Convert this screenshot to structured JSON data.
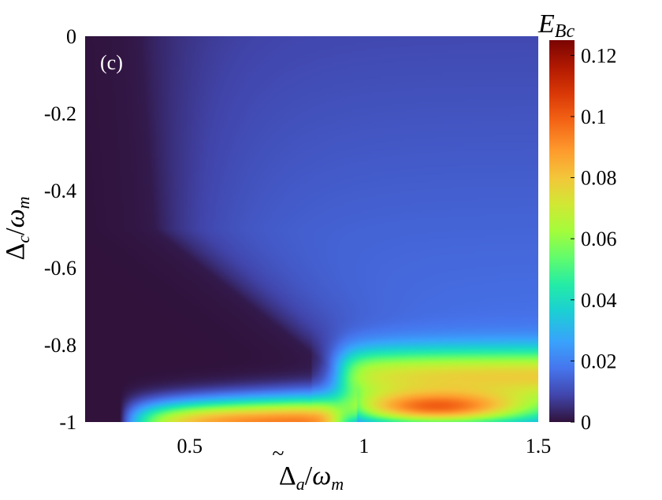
{
  "chart_data": {
    "type": "heatmap",
    "panel_label": "(c)",
    "xlabel": {
      "main": "Δ",
      "sub": "a",
      "tilde": true,
      "denominator": "ω",
      "denominator_sub": "m"
    },
    "ylabel": {
      "main": "Δ",
      "sub": "c",
      "denominator": "ω",
      "denominator_sub": "m"
    },
    "colorbar_label": {
      "main": "E",
      "sub": "Bc"
    },
    "xlim": [
      0.2,
      1.5
    ],
    "ylim": [
      -1,
      0
    ],
    "clim": [
      0,
      0.125
    ],
    "x_ticks": [
      0.5,
      1,
      1.5
    ],
    "x_tick_labels": [
      "0.5",
      "1",
      "1.5"
    ],
    "y_ticks": [
      0,
      -0.2,
      -0.4,
      -0.6,
      -0.8,
      -1
    ],
    "y_tick_labels": [
      "0",
      "-0.2",
      "-0.4",
      "-0.6",
      "-0.8",
      "-1"
    ],
    "colorbar_ticks": [
      0,
      0.02,
      0.04,
      0.06,
      0.08,
      0.1,
      0.12
    ],
    "colorbar_tick_labels": [
      "0",
      "0.02",
      "0.04",
      "0.06",
      "0.08",
      "0.1",
      "0.12"
    ],
    "colormap": "turbo",
    "grid": false,
    "regions": [
      {
        "x": 0.25,
        "y": -0.3,
        "value": 0.001
      },
      {
        "x": 0.7,
        "y": -0.1,
        "value": 0.006
      },
      {
        "x": 1.2,
        "y": -0.2,
        "value": 0.01
      },
      {
        "x": 1.2,
        "y": -0.6,
        "value": 0.02
      },
      {
        "x": 1.2,
        "y": -0.85,
        "value": 0.06
      },
      {
        "x": 0.75,
        "y": -0.99,
        "value": 0.09
      },
      {
        "x": 1.15,
        "y": -0.97,
        "value": 0.125
      }
    ]
  }
}
